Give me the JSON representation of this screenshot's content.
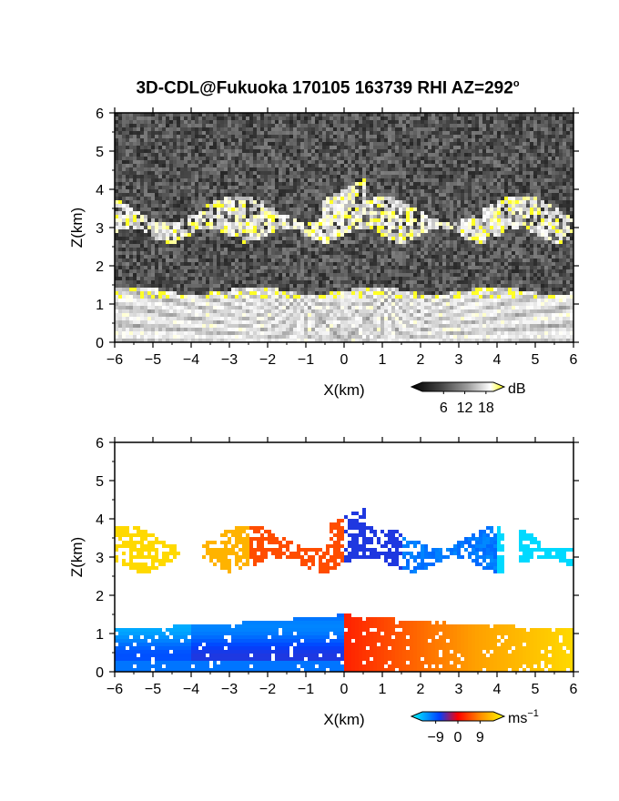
{
  "title": {
    "main": "3D-CDL@Fukuoka 170105 163739 RHI AZ=292",
    "degree": "o"
  },
  "chart_data": [
    {
      "type": "heatmap",
      "quantity": "intensity",
      "xlabel": "X(km)",
      "ylabel": "Z(km)",
      "xlim": [
        -6,
        6
      ],
      "ylim": [
        0,
        6
      ],
      "xticks": [
        -6,
        -5,
        -4,
        -3,
        -2,
        -1,
        0,
        1,
        2,
        3,
        4,
        5,
        6
      ],
      "yticks": [
        0,
        1,
        2,
        3,
        4,
        5,
        6
      ],
      "colorbar": {
        "unit": "dB",
        "ticks": [
          6,
          12,
          18
        ],
        "colors": [
          "#000000",
          "#404040",
          "#808080",
          "#c0c0c0",
          "#ffffff",
          "#ffff00"
        ]
      },
      "features": [
        {
          "layer": "boundary layer",
          "x_range": [
            -6,
            6
          ],
          "z_range": [
            0,
            1.5
          ]
        },
        {
          "layer": "cloud layer",
          "x_range": [
            -6,
            6
          ],
          "z_range": [
            2.7,
            4.2
          ]
        }
      ]
    },
    {
      "type": "heatmap",
      "quantity": "radial velocity",
      "xlabel": "X(km)",
      "ylabel": "Z(km)",
      "xlim": [
        -6,
        6
      ],
      "ylim": [
        0,
        6
      ],
      "xticks": [
        -6,
        -5,
        -4,
        -3,
        -2,
        -1,
        0,
        1,
        2,
        3,
        4,
        5,
        6
      ],
      "yticks": [
        0,
        1,
        2,
        3,
        4,
        5,
        6
      ],
      "colorbar": {
        "unit": "ms",
        "unit_exp": "−1",
        "ticks": [
          -9,
          0,
          9
        ],
        "colors": [
          "#00ffff",
          "#0040ff",
          "#ff0000",
          "#ffa000",
          "#ffff00"
        ]
      },
      "features": [
        {
          "layer": "boundary layer",
          "x_range": [
            -6,
            6
          ],
          "z_range": [
            0,
            1.6
          ]
        },
        {
          "layer": "cloud layer",
          "x_range": [
            -6,
            6
          ],
          "z_range": [
            2.7,
            4.2
          ]
        }
      ]
    }
  ]
}
